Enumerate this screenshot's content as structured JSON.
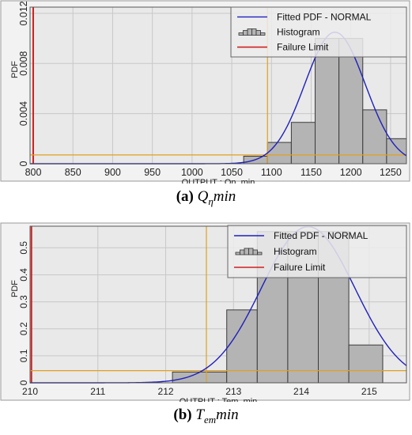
{
  "chart_data": [
    {
      "type": "bar",
      "caption": {
        "label": "(a)",
        "var": "Q",
        "sub": "η",
        "rest": "min"
      },
      "xlabel": "OUTPUT : Qη_min",
      "ylabel": "PDF",
      "xlim": [
        796,
        1270
      ],
      "ylim": [
        0,
        0.0125
      ],
      "xticks": [
        "800",
        "850",
        "900",
        "950",
        "1000",
        "1050",
        "1100",
        "1150",
        "1200",
        "1250"
      ],
      "xtick_values": [
        800,
        850,
        900,
        950,
        1000,
        1050,
        1100,
        1150,
        1200,
        1250
      ],
      "yticks": [
        "0",
        "0.004",
        "0.008",
        "0.012"
      ],
      "ytick_values": [
        0,
        0.004,
        0.008,
        0.012
      ],
      "bins": [
        {
          "x0": 1065,
          "x1": 1095,
          "value": 0.0006
        },
        {
          "x0": 1095,
          "x1": 1125,
          "value": 0.0017
        },
        {
          "x0": 1125,
          "x1": 1155,
          "value": 0.0033
        },
        {
          "x0": 1155,
          "x1": 1185,
          "value": 0.01
        },
        {
          "x0": 1185,
          "x1": 1215,
          "value": 0.01
        },
        {
          "x0": 1215,
          "x1": 1245,
          "value": 0.0043
        },
        {
          "x0": 1245,
          "x1": 1275,
          "value": 0.002
        }
      ],
      "fitted_pdf": {
        "mean": 1180,
        "sd": 38
      },
      "failure_limit": 800,
      "cdf_marker": {
        "x": 1095,
        "y": 0.0007
      },
      "legend": {
        "position": "top-right",
        "items": [
          "Fitted PDF - NORMAL",
          "Histogram",
          "Failure Limit"
        ]
      },
      "colors": {
        "pdf": "#1f1fbf",
        "failure": "#d02020",
        "marker": "#e0a020",
        "bar": "#b4b4b4",
        "plot_bg": "#e9e9e9"
      }
    },
    {
      "type": "bar",
      "caption": {
        "label": "(b)",
        "var": "T",
        "sub": "em",
        "rest": "min"
      },
      "xlabel": "OUTPUT : Tem_min",
      "ylabel": "PDF",
      "xlim": [
        210,
        215.55
      ],
      "ylim": [
        0,
        0.58
      ],
      "xticks": [
        "210",
        "211",
        "212",
        "213",
        "214",
        "215"
      ],
      "xtick_values": [
        210,
        211,
        212,
        213,
        214,
        215
      ],
      "yticks": [
        "0",
        "0.1",
        "0.2",
        "0.3",
        "0.4",
        "0.5"
      ],
      "ytick_values": [
        0,
        0.1,
        0.2,
        0.3,
        0.4,
        0.5
      ],
      "bins": [
        {
          "x0": 212.1,
          "x1": 212.9,
          "value": 0.04
        },
        {
          "x0": 212.9,
          "x1": 213.35,
          "value": 0.27
        },
        {
          "x0": 213.35,
          "x1": 213.8,
          "value": 0.56
        },
        {
          "x0": 213.8,
          "x1": 214.25,
          "value": 0.56
        },
        {
          "x0": 214.25,
          "x1": 214.7,
          "value": 0.56
        },
        {
          "x0": 214.7,
          "x1": 215.2,
          "value": 0.14
        }
      ],
      "fitted_pdf": {
        "mean": 214.1,
        "sd": 0.69
      },
      "failure_limit": 210.02,
      "cdf_marker": {
        "x": 212.6,
        "y": 0.045
      },
      "legend": {
        "position": "top-right",
        "items": [
          "Fitted PDF - NORMAL",
          "Histogram",
          "Failure Limit"
        ]
      },
      "colors": {
        "pdf": "#1f1fbf",
        "failure": "#d02020",
        "marker": "#e0a020",
        "bar": "#b4b4b4",
        "plot_bg": "#e9e9e9"
      }
    }
  ]
}
